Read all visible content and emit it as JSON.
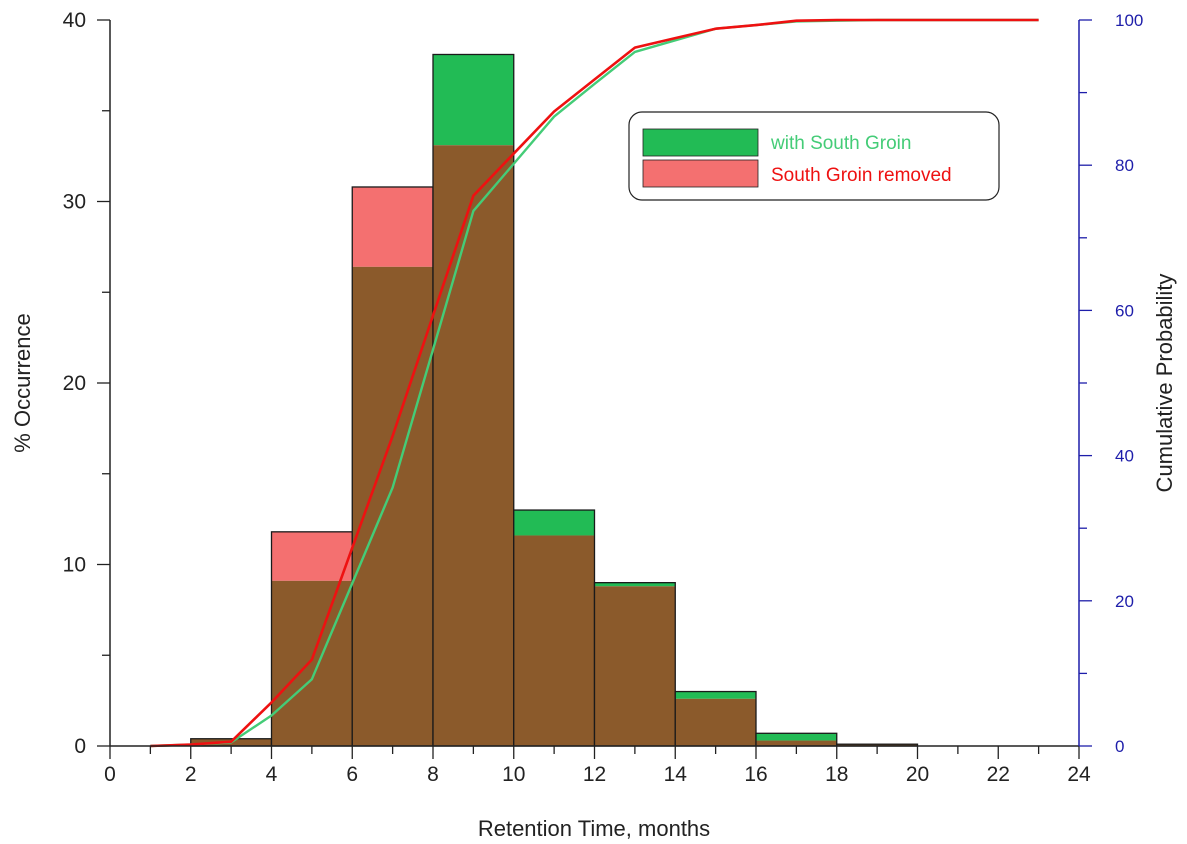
{
  "chart_data": {
    "type": "bar",
    "title": "",
    "xlabel": "Retention Time, months",
    "ylabel": "% Occurrence",
    "y2label": "Cumulative Probability",
    "xlim": [
      0,
      24
    ],
    "ylim": [
      0,
      40
    ],
    "y2lim": [
      0,
      100
    ],
    "x_ticks": [
      "0",
      "2",
      "4",
      "6",
      "8",
      "10",
      "12",
      "14",
      "16",
      "18",
      "20",
      "22",
      "24"
    ],
    "y_ticks": [
      "0",
      "10",
      "20",
      "30",
      "40"
    ],
    "y2_ticks": [
      "0",
      "20",
      "40",
      "60",
      "80",
      "100"
    ],
    "grid": false,
    "legend_position": "top-right",
    "bins": [
      [
        0,
        2
      ],
      [
        2,
        4
      ],
      [
        4,
        6
      ],
      [
        6,
        8
      ],
      [
        8,
        10
      ],
      [
        10,
        12
      ],
      [
        12,
        14
      ],
      [
        14,
        16
      ],
      [
        16,
        18
      ],
      [
        18,
        20
      ],
      [
        20,
        22
      ],
      [
        22,
        24
      ]
    ],
    "overlap_color": "#8b5a2b",
    "series": [
      {
        "name": "with South Groin",
        "color": "#22bb55",
        "line_color": "#44cc77",
        "values": [
          0,
          0.4,
          9.1,
          26.4,
          38.1,
          13.0,
          9.0,
          3.0,
          0.7,
          0.1,
          0,
          0
        ],
        "cumulative": {
          "x": [
            1,
            2,
            3,
            4,
            5,
            6,
            7,
            8,
            9,
            10,
            11,
            12,
            13,
            14,
            15,
            16,
            17,
            18,
            19,
            20,
            21,
            22,
            23
          ],
          "y": [
            0,
            0.2,
            0.5,
            4.2,
            9.2,
            22.4,
            35.6,
            54.6,
            73.7,
            80.2,
            86.7,
            91.2,
            95.6,
            97.2,
            98.8,
            99.3,
            99.8,
            99.9,
            100,
            100,
            100,
            100,
            100
          ]
        }
      },
      {
        "name": "South Groin removed",
        "color": "#f47070",
        "line_color": "#ee1111",
        "values": [
          0,
          0.4,
          11.8,
          30.8,
          33.1,
          11.6,
          8.8,
          2.6,
          0.3,
          0.1,
          0,
          0
        ],
        "cumulative": {
          "x": [
            1,
            2,
            3,
            4,
            5,
            6,
            7,
            8,
            9,
            10,
            11,
            12,
            13,
            14,
            15,
            16,
            17,
            18,
            19,
            20,
            21,
            22,
            23
          ],
          "y": [
            0,
            0.2,
            0.6,
            6.0,
            11.9,
            27.3,
            42.7,
            59.3,
            75.8,
            81.6,
            87.4,
            91.8,
            96.2,
            97.5,
            98.8,
            99.3,
            99.9,
            100,
            100,
            100,
            100,
            100,
            100
          ]
        }
      }
    ]
  }
}
